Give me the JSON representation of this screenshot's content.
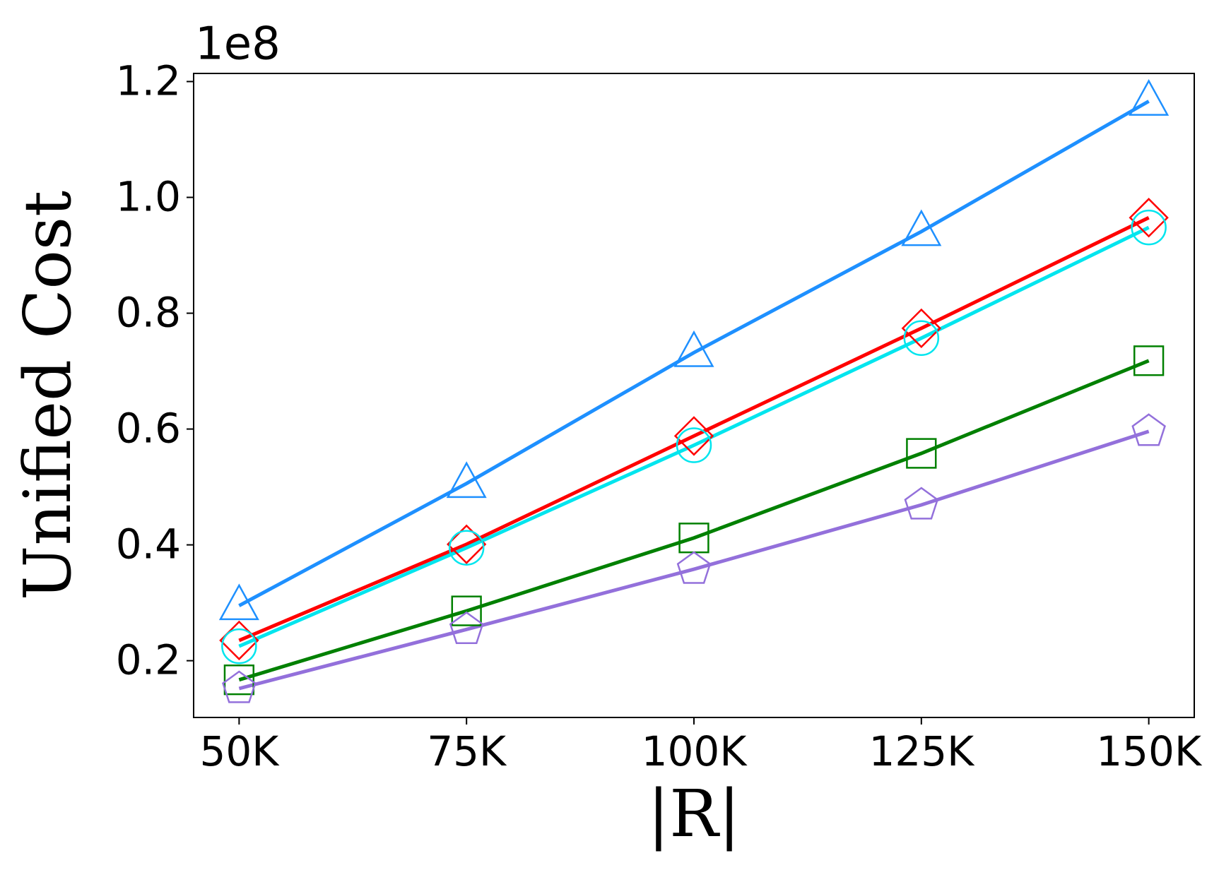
{
  "chart_data": {
    "type": "line",
    "y_label": "Unified Cost",
    "x_label": "|R|",
    "y_offset_label": "1e8",
    "categories": [
      "50K",
      "75K",
      "100K",
      "125K",
      "150K"
    ],
    "ylim": [
      0.102,
      1.214
    ],
    "yticks": [
      0.2,
      0.4,
      0.6,
      0.8,
      {
        "value": 1,
        "label": "1.0"
      },
      1.2
    ],
    "series": [
      {
        "color": "#1e90ff",
        "marker": "triangle",
        "values": [
          0.295,
          0.506,
          0.732,
          0.941,
          1.166
        ]
      },
      {
        "color": "#ff0000",
        "marker": "diamond",
        "values": [
          0.235,
          0.401,
          0.588,
          0.774,
          0.965
        ]
      },
      {
        "color": "#00e5ee",
        "marker": "circle",
        "values": [
          0.225,
          0.395,
          0.572,
          0.757,
          0.948
        ]
      },
      {
        "color": "#008000",
        "marker": "square",
        "values": [
          0.167,
          0.286,
          0.412,
          0.558,
          0.718
        ]
      },
      {
        "color": "#9370db",
        "marker": "pentagon",
        "values": [
          0.152,
          0.254,
          0.358,
          0.469,
          0.596
        ]
      }
    ]
  }
}
